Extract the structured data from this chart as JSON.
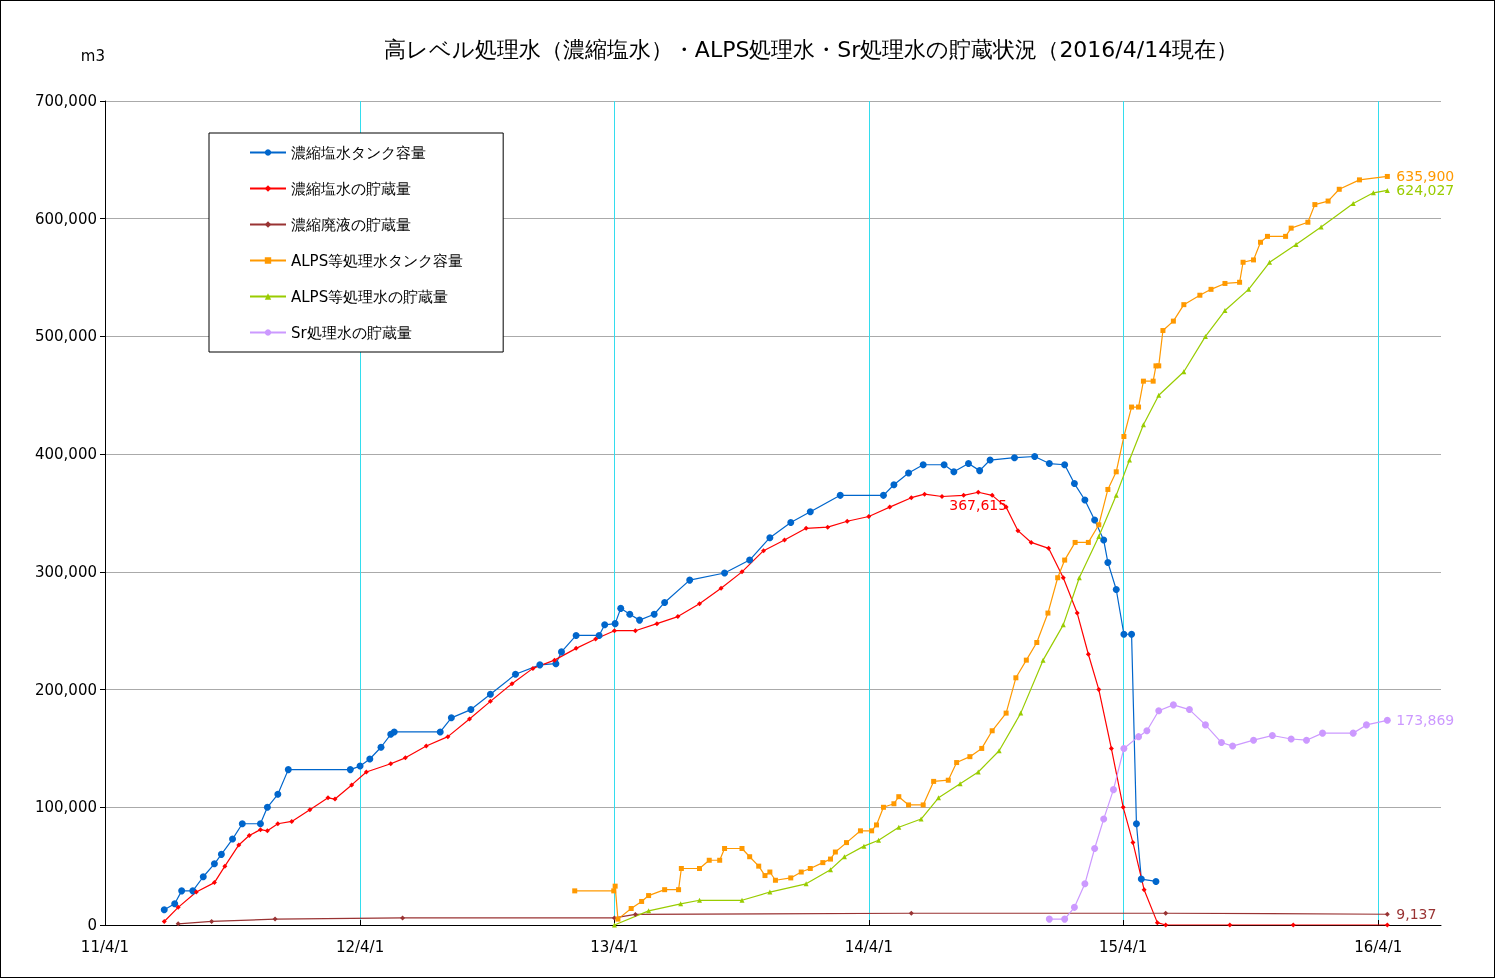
{
  "chart_data": {
    "type": "line",
    "title": "高レベル処理水（濃縮塩水）・ALPS処理水・Sr処理水の貯蔵状況（2016/4/14現在）",
    "ylabel": "m3",
    "xlim": [
      "2011-04-01",
      "2016-06-30"
    ],
    "xticks": [
      {
        "value": "2011-04-01",
        "label": "11/4/1"
      },
      {
        "value": "2012-04-01",
        "label": "12/4/1"
      },
      {
        "value": "2013-04-01",
        "label": "13/4/1"
      },
      {
        "value": "2014-04-01",
        "label": "14/4/1"
      },
      {
        "value": "2015-04-01",
        "label": "15/4/1"
      },
      {
        "value": "2016-04-01",
        "label": "16/4/1"
      }
    ],
    "ylim": [
      0,
      700000
    ],
    "yticks": [
      {
        "value": 0,
        "label": "0"
      },
      {
        "value": 100000,
        "label": "100,000"
      },
      {
        "value": 200000,
        "label": "200,000"
      },
      {
        "value": 300000,
        "label": "300,000"
      },
      {
        "value": 400000,
        "label": "400,000"
      },
      {
        "value": 500000,
        "label": "500,000"
      },
      {
        "value": 600000,
        "label": "600,000"
      },
      {
        "value": 700000,
        "label": "700,000"
      }
    ],
    "grid": true,
    "legend": "top left",
    "series": [
      {
        "name": "濃縮塩水タンク容量",
        "color": "#0066cc",
        "marker": "circle",
        "x": [
          "2011-06-25",
          "2011-07-10",
          "2011-07-20",
          "2011-08-05",
          "2011-08-20",
          "2011-09-05",
          "2011-09-15",
          "2011-10-01",
          "2011-10-15",
          "2011-11-10",
          "2011-11-20",
          "2011-12-05",
          "2011-12-20",
          "2012-03-18",
          "2012-04-01",
          "2012-04-15",
          "2012-05-01",
          "2012-05-15",
          "2012-05-20",
          "2012-07-25",
          "2012-08-10",
          "2012-09-07",
          "2012-10-05",
          "2012-11-10",
          "2012-12-15",
          "2013-01-07",
          "2013-01-15",
          "2013-02-05",
          "2013-03-10",
          "2013-03-18",
          "2013-04-02",
          "2013-04-10",
          "2013-04-23",
          "2013-05-07",
          "2013-05-28",
          "2013-06-12",
          "2013-07-18",
          "2013-09-06",
          "2013-10-12",
          "2013-11-10",
          "2013-12-10",
          "2014-01-07",
          "2014-02-19",
          "2014-04-22",
          "2014-05-07",
          "2014-05-28",
          "2014-06-18",
          "2014-07-18",
          "2014-08-01",
          "2014-08-22",
          "2014-09-07",
          "2014-09-22",
          "2014-10-27",
          "2014-11-25",
          "2014-12-16",
          "2015-01-07",
          "2015-01-21",
          "2015-02-05",
          "2015-02-19",
          "2015-03-04",
          "2015-03-10",
          "2015-03-22",
          "2015-04-02",
          "2015-04-13",
          "2015-04-20",
          "2015-04-27",
          "2015-05-18"
        ],
        "values": [
          13000,
          18000,
          29000,
          29000,
          41000,
          52000,
          60000,
          73000,
          86000,
          86000,
          100000,
          111000,
          132000,
          132000,
          135000,
          141000,
          151000,
          162000,
          164000,
          164000,
          176000,
          183000,
          196000,
          213000,
          221000,
          222000,
          232000,
          246000,
          246000,
          255000,
          256000,
          269000,
          264000,
          259000,
          264000,
          274000,
          293000,
          299000,
          310000,
          329000,
          342000,
          351000,
          365000,
          365000,
          374000,
          384000,
          391000,
          391000,
          385000,
          392000,
          386000,
          395000,
          397000,
          398000,
          392000,
          391000,
          375000,
          361000,
          344000,
          327000,
          308000,
          285000,
          247000,
          247000,
          86000,
          39000,
          37000
        ]
      },
      {
        "name": "濃縮塩水の貯蔵量",
        "color": "#ff0000",
        "marker": "diamond",
        "x": [
          "2011-06-25",
          "2011-07-15",
          "2011-08-10",
          "2011-09-05",
          "2011-09-20",
          "2011-10-10",
          "2011-10-25",
          "2011-11-10",
          "2011-11-20",
          "2011-12-05",
          "2011-12-25",
          "2012-01-20",
          "2012-02-15",
          "2012-02-25",
          "2012-03-20",
          "2012-04-10",
          "2012-05-15",
          "2012-06-05",
          "2012-07-05",
          "2012-08-05",
          "2012-09-05",
          "2012-10-05",
          "2012-11-05",
          "2012-12-05",
          "2013-01-05",
          "2013-02-05",
          "2013-03-05",
          "2013-04-01",
          "2013-05-01",
          "2013-06-01",
          "2013-07-01",
          "2013-08-01",
          "2013-09-01",
          "2013-10-01",
          "2013-11-01",
          "2013-12-01",
          "2014-01-01",
          "2014-02-01",
          "2014-03-01",
          "2014-04-01",
          "2014-05-01",
          "2014-06-01",
          "2014-06-20",
          "2014-07-15",
          "2014-08-15",
          "2014-09-05",
          "2014-09-25",
          "2014-10-15",
          "2014-11-01",
          "2014-11-20",
          "2014-12-15",
          "2015-01-05",
          "2015-01-25",
          "2015-02-10",
          "2015-02-25",
          "2015-03-15",
          "2015-04-01",
          "2015-04-15",
          "2015-05-01",
          "2015-05-20",
          "2015-06-01",
          "2015-09-01",
          "2015-12-01",
          "2016-04-14"
        ],
        "values": [
          3000,
          15000,
          28000,
          36000,
          50000,
          68000,
          76000,
          81000,
          80000,
          86000,
          88000,
          98000,
          108000,
          107000,
          119000,
          130000,
          137000,
          142000,
          152000,
          160000,
          175000,
          190000,
          205000,
          218000,
          225000,
          235000,
          243000,
          250000,
          250000,
          256000,
          262000,
          273000,
          286000,
          300000,
          318000,
          327000,
          337000,
          338000,
          343000,
          347000,
          355000,
          363000,
          366000,
          364000,
          365000,
          367615,
          365000,
          355000,
          335000,
          325000,
          320000,
          295000,
          265000,
          230000,
          200000,
          150000,
          100000,
          70000,
          30000,
          2000,
          0,
          0,
          0,
          0
        ]
      },
      {
        "name": "濃縮廃液の貯蔵量",
        "color": "#993333",
        "marker": "diamond",
        "x": [
          "2011-07-15",
          "2011-09-01",
          "2011-12-01",
          "2012-06-01",
          "2013-04-01",
          "2013-05-01",
          "2014-06-01",
          "2015-06-01",
          "2016-04-14"
        ],
        "values": [
          1000,
          3000,
          5000,
          6000,
          6000,
          9000,
          10000,
          10000,
          9137
        ]
      },
      {
        "name": "ALPS等処理水タンク容量",
        "color": "#ff9900",
        "marker": "square",
        "x": [
          "2013-02-03",
          "2013-03-31",
          "2013-04-02",
          "2013-04-06",
          "2013-04-25",
          "2013-05-10",
          "2013-05-20",
          "2013-06-12",
          "2013-07-02",
          "2013-07-06",
          "2013-08-01",
          "2013-08-15",
          "2013-08-30",
          "2013-09-06",
          "2013-10-01",
          "2013-10-12",
          "2013-10-25",
          "2013-11-03",
          "2013-11-10",
          "2013-11-18",
          "2013-12-10",
          "2013-12-25",
          "2014-01-07",
          "2014-01-25",
          "2014-02-05",
          "2014-02-12",
          "2014-02-28",
          "2014-03-20",
          "2014-04-05",
          "2014-04-12",
          "2014-04-22",
          "2014-05-07",
          "2014-05-14",
          "2014-05-28",
          "2014-06-18",
          "2014-07-03",
          "2014-07-24",
          "2014-08-05",
          "2014-08-24",
          "2014-09-10",
          "2014-09-25",
          "2014-10-15",
          "2014-10-29",
          "2014-11-13",
          "2014-11-28",
          "2014-12-14",
          "2014-12-28",
          "2015-01-07",
          "2015-01-22",
          "2015-02-10",
          "2015-02-25",
          "2015-03-10",
          "2015-03-22",
          "2015-04-02",
          "2015-04-13",
          "2015-04-23",
          "2015-04-30",
          "2015-05-14",
          "2015-05-18",
          "2015-05-22",
          "2015-05-28",
          "2015-06-12",
          "2015-06-27",
          "2015-07-20",
          "2015-08-05",
          "2015-08-25",
          "2015-09-15",
          "2015-09-20",
          "2015-10-05",
          "2015-10-15",
          "2015-10-25",
          "2015-11-20",
          "2015-11-28",
          "2015-12-22",
          "2016-01-01",
          "2016-01-20",
          "2016-02-05",
          "2016-03-05",
          "2016-04-14"
        ],
        "values": [
          29000,
          29000,
          33000,
          5000,
          14000,
          20000,
          25000,
          30000,
          30000,
          48000,
          48000,
          55000,
          55000,
          65000,
          65000,
          58000,
          50000,
          42000,
          45000,
          38000,
          40000,
          45000,
          48000,
          53000,
          56000,
          62000,
          70000,
          80000,
          80000,
          85000,
          100000,
          103000,
          109000,
          102000,
          102000,
          122000,
          123000,
          138000,
          143000,
          150000,
          165000,
          180000,
          210000,
          225000,
          240000,
          265000,
          295000,
          310000,
          325000,
          325000,
          340000,
          370000,
          385000,
          415000,
          440000,
          440000,
          462000,
          462000,
          475000,
          475000,
          505000,
          513000,
          527000,
          535000,
          540000,
          545000,
          546000,
          563000,
          565000,
          580000,
          585000,
          585000,
          592000,
          597000,
          612000,
          615000,
          625000,
          633000,
          635900
        ]
      },
      {
        "name": "ALPS等処理水の貯蔵量",
        "color": "#99cc00",
        "marker": "triangle",
        "x": [
          "2013-04-01",
          "2013-05-20",
          "2013-07-05",
          "2013-08-01",
          "2013-10-01",
          "2013-11-10",
          "2014-01-01",
          "2014-02-05",
          "2014-02-25",
          "2014-03-25",
          "2014-04-15",
          "2014-05-14",
          "2014-06-15",
          "2014-07-10",
          "2014-08-10",
          "2014-09-05",
          "2014-10-05",
          "2014-11-05",
          "2014-12-07",
          "2015-01-05",
          "2015-01-28",
          "2015-02-25",
          "2015-03-22",
          "2015-04-10",
          "2015-04-30",
          "2015-05-22",
          "2015-06-27",
          "2015-07-28",
          "2015-08-25",
          "2015-09-28",
          "2015-10-28",
          "2015-12-05",
          "2016-01-10",
          "2016-02-25",
          "2016-03-25",
          "2016-04-14"
        ],
        "values": [
          0,
          12000,
          18000,
          21000,
          21000,
          28000,
          35000,
          47000,
          58000,
          67000,
          72000,
          83000,
          90000,
          108000,
          120000,
          130000,
          148000,
          180000,
          225000,
          255000,
          295000,
          330000,
          365000,
          395000,
          425000,
          450000,
          470000,
          500000,
          522000,
          540000,
          563000,
          578000,
          593000,
          613000,
          622000,
          624027
        ]
      },
      {
        "name": "Sr処理水の貯蔵量",
        "color": "#cc99ff",
        "marker": "circle",
        "x": [
          "2014-12-16",
          "2015-01-07",
          "2015-01-21",
          "2015-02-05",
          "2015-02-19",
          "2015-03-04",
          "2015-03-18",
          "2015-04-02",
          "2015-04-23",
          "2015-05-05",
          "2015-05-22",
          "2015-06-12",
          "2015-07-05",
          "2015-07-28",
          "2015-08-20",
          "2015-09-05",
          "2015-10-05",
          "2015-11-01",
          "2015-11-28",
          "2015-12-20",
          "2016-01-12",
          "2016-02-25",
          "2016-03-15",
          "2016-04-14"
        ],
        "values": [
          5000,
          5000,
          15000,
          35000,
          65000,
          90000,
          115000,
          150000,
          160000,
          165000,
          182000,
          187000,
          183000,
          170000,
          155000,
          152000,
          157000,
          161000,
          158000,
          157000,
          163000,
          163000,
          170000,
          173869
        ]
      }
    ],
    "annotations": [
      {
        "text": "367,615",
        "x": "2014-09-05",
        "y": 367615
      },
      {
        "text": "635,900",
        "x": "2016-04-14",
        "y": 635900
      },
      {
        "text": "624,027",
        "x": "2016-04-14",
        "y": 624027
      },
      {
        "text": "173,869",
        "x": "2016-04-14",
        "y": 173869
      },
      {
        "text": "9,137",
        "x": "2016-04-14",
        "y": 9137
      }
    ]
  }
}
